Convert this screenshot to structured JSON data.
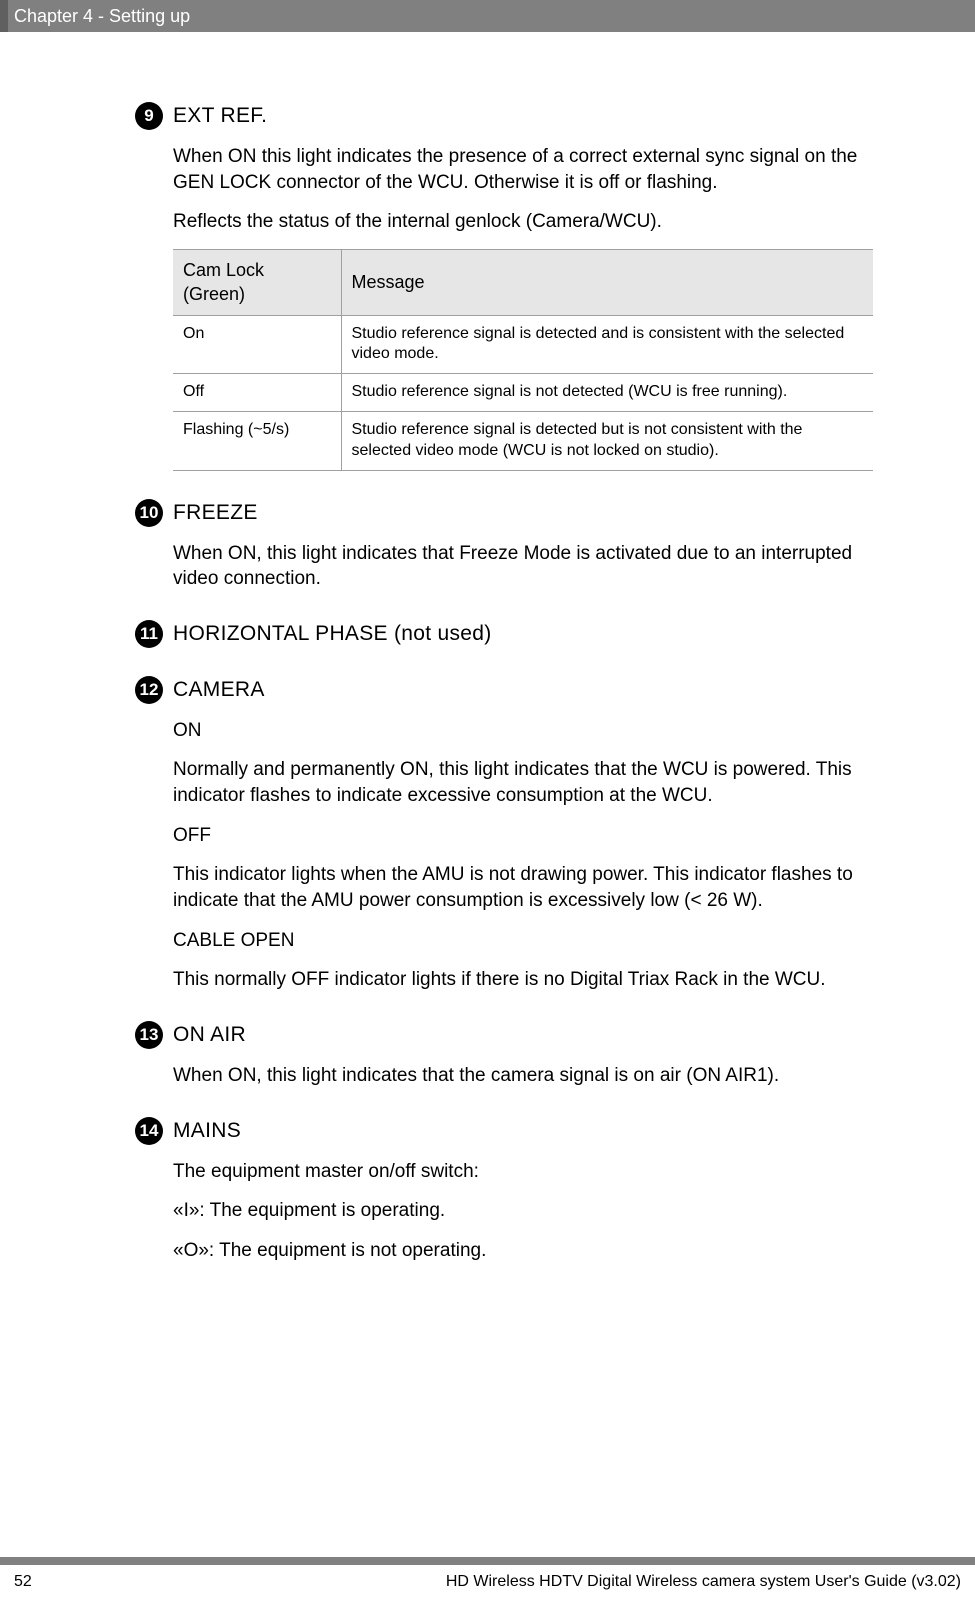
{
  "header": {
    "chapter": "Chapter 4  - Setting up"
  },
  "sections": {
    "s9": {
      "num": "9",
      "title": "EXT REF.",
      "p1": "When ON this light indicates the presence of a correct external sync signal on the GEN LOCK connector of the WCU. Otherwise it is off or flashing.",
      "p2": "Reflects the status of the internal genlock (Camera/WCU).",
      "table": {
        "h1": "Cam Lock (Green)",
        "h2": "Message",
        "r1c1": "On",
        "r1c2": "Studio reference signal is detected and is consistent with the selected video mode.",
        "r2c1": "Off",
        "r2c2": "Studio reference signal is not detected (WCU is free running).",
        "r3c1": "Flashing (~5/s)",
        "r3c2": "Studio reference signal is detected but is not consistent with the selected video mode (WCU is not locked on studio)."
      }
    },
    "s10": {
      "num": "10",
      "title": "FREEZE",
      "p1": "When ON, this light indicates that Freeze Mode is activated due to an interrupted video connection."
    },
    "s11": {
      "num": "11",
      "title": "HORIZONTAL PHASE (not used)"
    },
    "s12": {
      "num": "12",
      "title": "CAMERA",
      "p1": "ON",
      "p2": "Normally and permanently ON, this light indicates that the WCU is powered. This indicator flashes to indicate excessive consumption at the WCU.",
      "p3": "OFF",
      "p4": "This indicator lights when the AMU is not drawing power. This indicator flashes to indicate that the AMU power consumption is excessively low (< 26 W).",
      "p5": "CABLE OPEN",
      "p6": "This normally OFF indicator lights if there is no Digital Triax Rack in the WCU."
    },
    "s13": {
      "num": "13",
      "title": "ON AIR",
      "p1": "When ON, this light indicates that the camera signal is on air (ON AIR1)."
    },
    "s14": {
      "num": "14",
      "title": "MAINS",
      "p1": "The equipment master on/off switch:",
      "p2": "«I»: The equipment is operating.",
      "p3": "«O»: The equipment is not operating."
    }
  },
  "footer": {
    "page": "52",
    "doc": "HD Wireless HDTV Digital Wireless camera system User's Guide (v3.02)"
  }
}
